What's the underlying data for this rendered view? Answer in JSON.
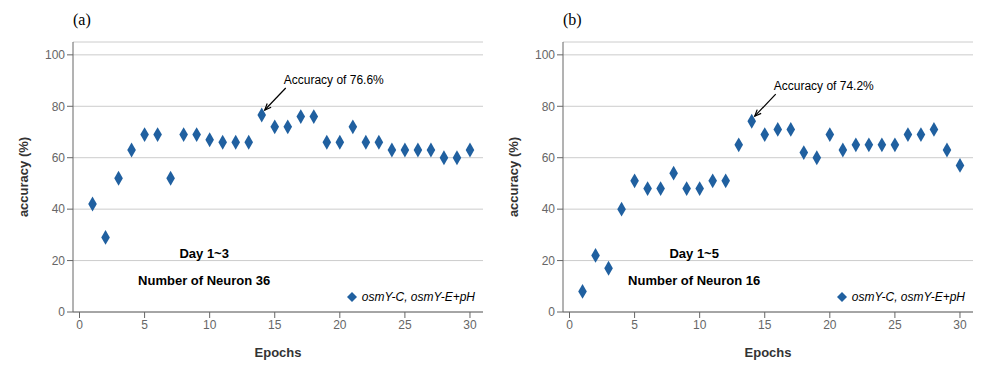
{
  "chart_data": [
    {
      "type": "scatter",
      "title": "(a)",
      "xlabel": "Epochs",
      "ylabel": "accuracy (%)",
      "x": [
        1,
        2,
        3,
        4,
        5,
        6,
        7,
        8,
        9,
        10,
        11,
        12,
        13,
        14,
        15,
        16,
        17,
        18,
        19,
        20,
        21,
        22,
        23,
        24,
        25,
        26,
        27,
        28,
        29,
        30
      ],
      "series": [
        {
          "name": "osmY-C, osmY-E+pH",
          "color": "#2060a0",
          "marker": "diamond",
          "values": [
            42,
            29,
            52,
            63,
            69,
            69,
            52,
            69,
            69,
            67,
            66,
            66,
            66,
            76.6,
            72,
            72,
            76,
            76,
            66,
            66,
            72,
            66,
            66,
            63,
            63,
            63,
            63,
            60,
            60,
            63
          ]
        }
      ],
      "xlim": [
        -0.5,
        31
      ],
      "ylim": [
        0,
        105
      ],
      "xticks": [
        0,
        5,
        10,
        15,
        20,
        25,
        30
      ],
      "yticks": [
        0,
        20,
        40,
        60,
        80,
        100
      ],
      "grid": "y",
      "legend": "lower right",
      "annotations": [
        {
          "text": "Accuracy of 76.6%",
          "x": 14,
          "y": 76.6
        },
        {
          "text": "Day 1~3"
        },
        {
          "text": "Number of Neuron 36"
        }
      ]
    },
    {
      "type": "scatter",
      "title": "(b)",
      "xlabel": "Epochs",
      "ylabel": "accuracy (%)",
      "x": [
        1,
        2,
        3,
        4,
        5,
        6,
        7,
        8,
        9,
        10,
        11,
        12,
        13,
        14,
        15,
        16,
        17,
        18,
        19,
        20,
        21,
        22,
        23,
        24,
        25,
        26,
        27,
        28,
        29,
        30
      ],
      "series": [
        {
          "name": "osmY-C, osmY-E+pH",
          "color": "#2060a0",
          "marker": "diamond",
          "values": [
            8,
            22,
            17,
            40,
            51,
            48,
            48,
            54,
            48,
            48,
            51,
            51,
            65,
            74.2,
            69,
            71,
            71,
            62,
            60,
            69,
            63,
            65,
            65,
            65,
            65,
            69,
            69,
            71,
            63,
            57
          ]
        }
      ],
      "xlim": [
        -0.5,
        31
      ],
      "ylim": [
        0,
        105
      ],
      "xticks": [
        0,
        5,
        10,
        15,
        20,
        25,
        30
      ],
      "yticks": [
        0,
        20,
        40,
        60,
        80,
        100
      ],
      "grid": "y",
      "legend": "lower right",
      "annotations": [
        {
          "text": "Accuracy of 74.2%",
          "x": 14,
          "y": 74.2
        },
        {
          "text": "Day 1~5"
        },
        {
          "text": "Number of Neuron 16"
        }
      ]
    }
  ]
}
